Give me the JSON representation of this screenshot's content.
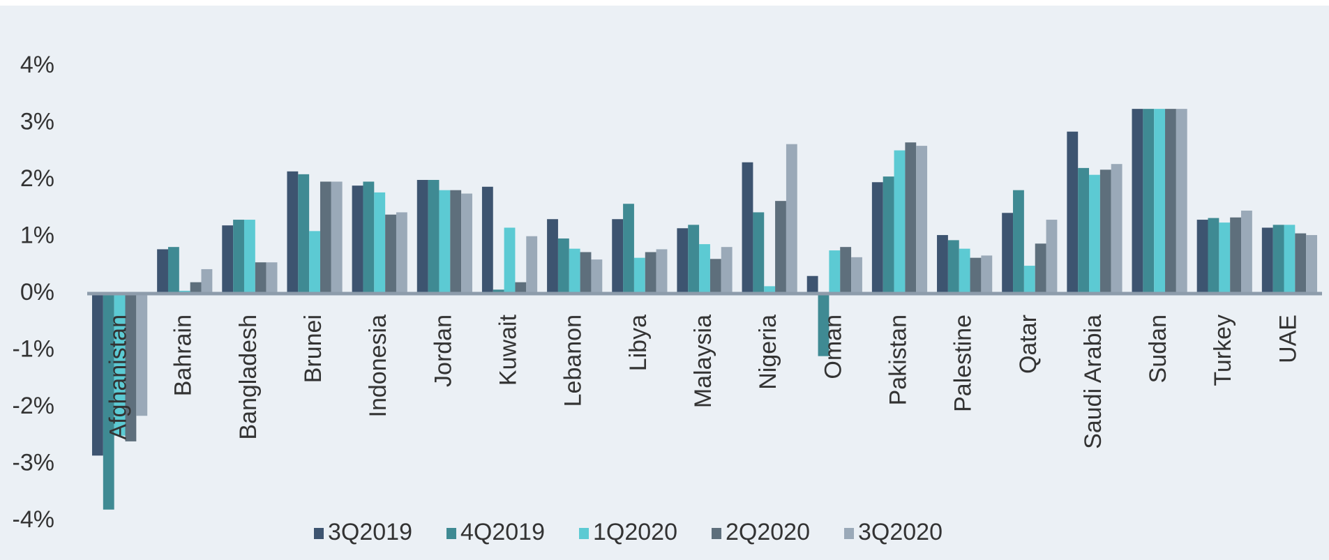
{
  "chart_data": {
    "type": "bar",
    "categories": [
      "Afghanistan",
      "Bahrain",
      "Bangladesh",
      "Brunei",
      "Indonesia",
      "Jordan",
      "Kuwait",
      "Lebanon",
      "Libya",
      "Malaysia",
      "Nigeria",
      "Oman",
      "Pakistan",
      "Palestine",
      "Qatar",
      "Saudi Arabia",
      "Sudan",
      "Turkey",
      "UAE"
    ],
    "series": [
      {
        "name": "3Q2019",
        "color": "#3d5470",
        "values": [
          -2.85,
          0.78,
          1.2,
          2.15,
          1.9,
          2.0,
          1.88,
          1.31,
          1.31,
          1.15,
          2.31,
          0.31,
          1.96,
          1.03,
          1.42,
          2.85,
          3.25,
          1.3,
          1.16
        ]
      },
      {
        "name": "4Q2019",
        "color": "#3f8a93",
        "values": [
          -3.8,
          0.82,
          1.3,
          2.1,
          1.97,
          2.0,
          0.07,
          0.97,
          1.58,
          1.21,
          1.43,
          -1.1,
          2.06,
          0.94,
          1.82,
          2.21,
          3.25,
          1.33,
          1.21
        ]
      },
      {
        "name": "1Q2020",
        "color": "#5ccad3",
        "values": [
          -2.5,
          0.05,
          1.3,
          1.1,
          1.78,
          1.82,
          1.16,
          0.79,
          0.63,
          0.87,
          0.13,
          0.76,
          2.52,
          0.79,
          0.49,
          2.09,
          3.25,
          1.25,
          1.21
        ]
      },
      {
        "name": "2Q2020",
        "color": "#5e6f7c",
        "values": [
          -2.6,
          0.2,
          0.55,
          1.97,
          1.39,
          1.82,
          0.2,
          0.73,
          0.73,
          0.61,
          1.63,
          0.82,
          2.66,
          0.63,
          0.88,
          2.18,
          3.25,
          1.34,
          1.06
        ]
      },
      {
        "name": "3Q2020",
        "color": "#9aa9b8",
        "values": [
          -2.15,
          0.43,
          0.55,
          1.97,
          1.43,
          1.76,
          1.01,
          0.6,
          0.78,
          0.82,
          2.63,
          0.64,
          2.6,
          0.67,
          1.3,
          2.28,
          3.25,
          1.46,
          1.03
        ]
      }
    ],
    "ylim": [
      -4,
      4
    ],
    "yticks": [
      {
        "value": -4,
        "label": "-4%"
      },
      {
        "value": -3,
        "label": "-3%"
      },
      {
        "value": -2,
        "label": "-2%"
      },
      {
        "value": -1,
        "label": "-1%"
      },
      {
        "value": 0,
        "label": "0%"
      },
      {
        "value": 1,
        "label": "1%"
      },
      {
        "value": 2,
        "label": "2%"
      },
      {
        "value": 3,
        "label": "3%"
      },
      {
        "value": 4,
        "label": "4%"
      }
    ],
    "legend": "bottom"
  }
}
